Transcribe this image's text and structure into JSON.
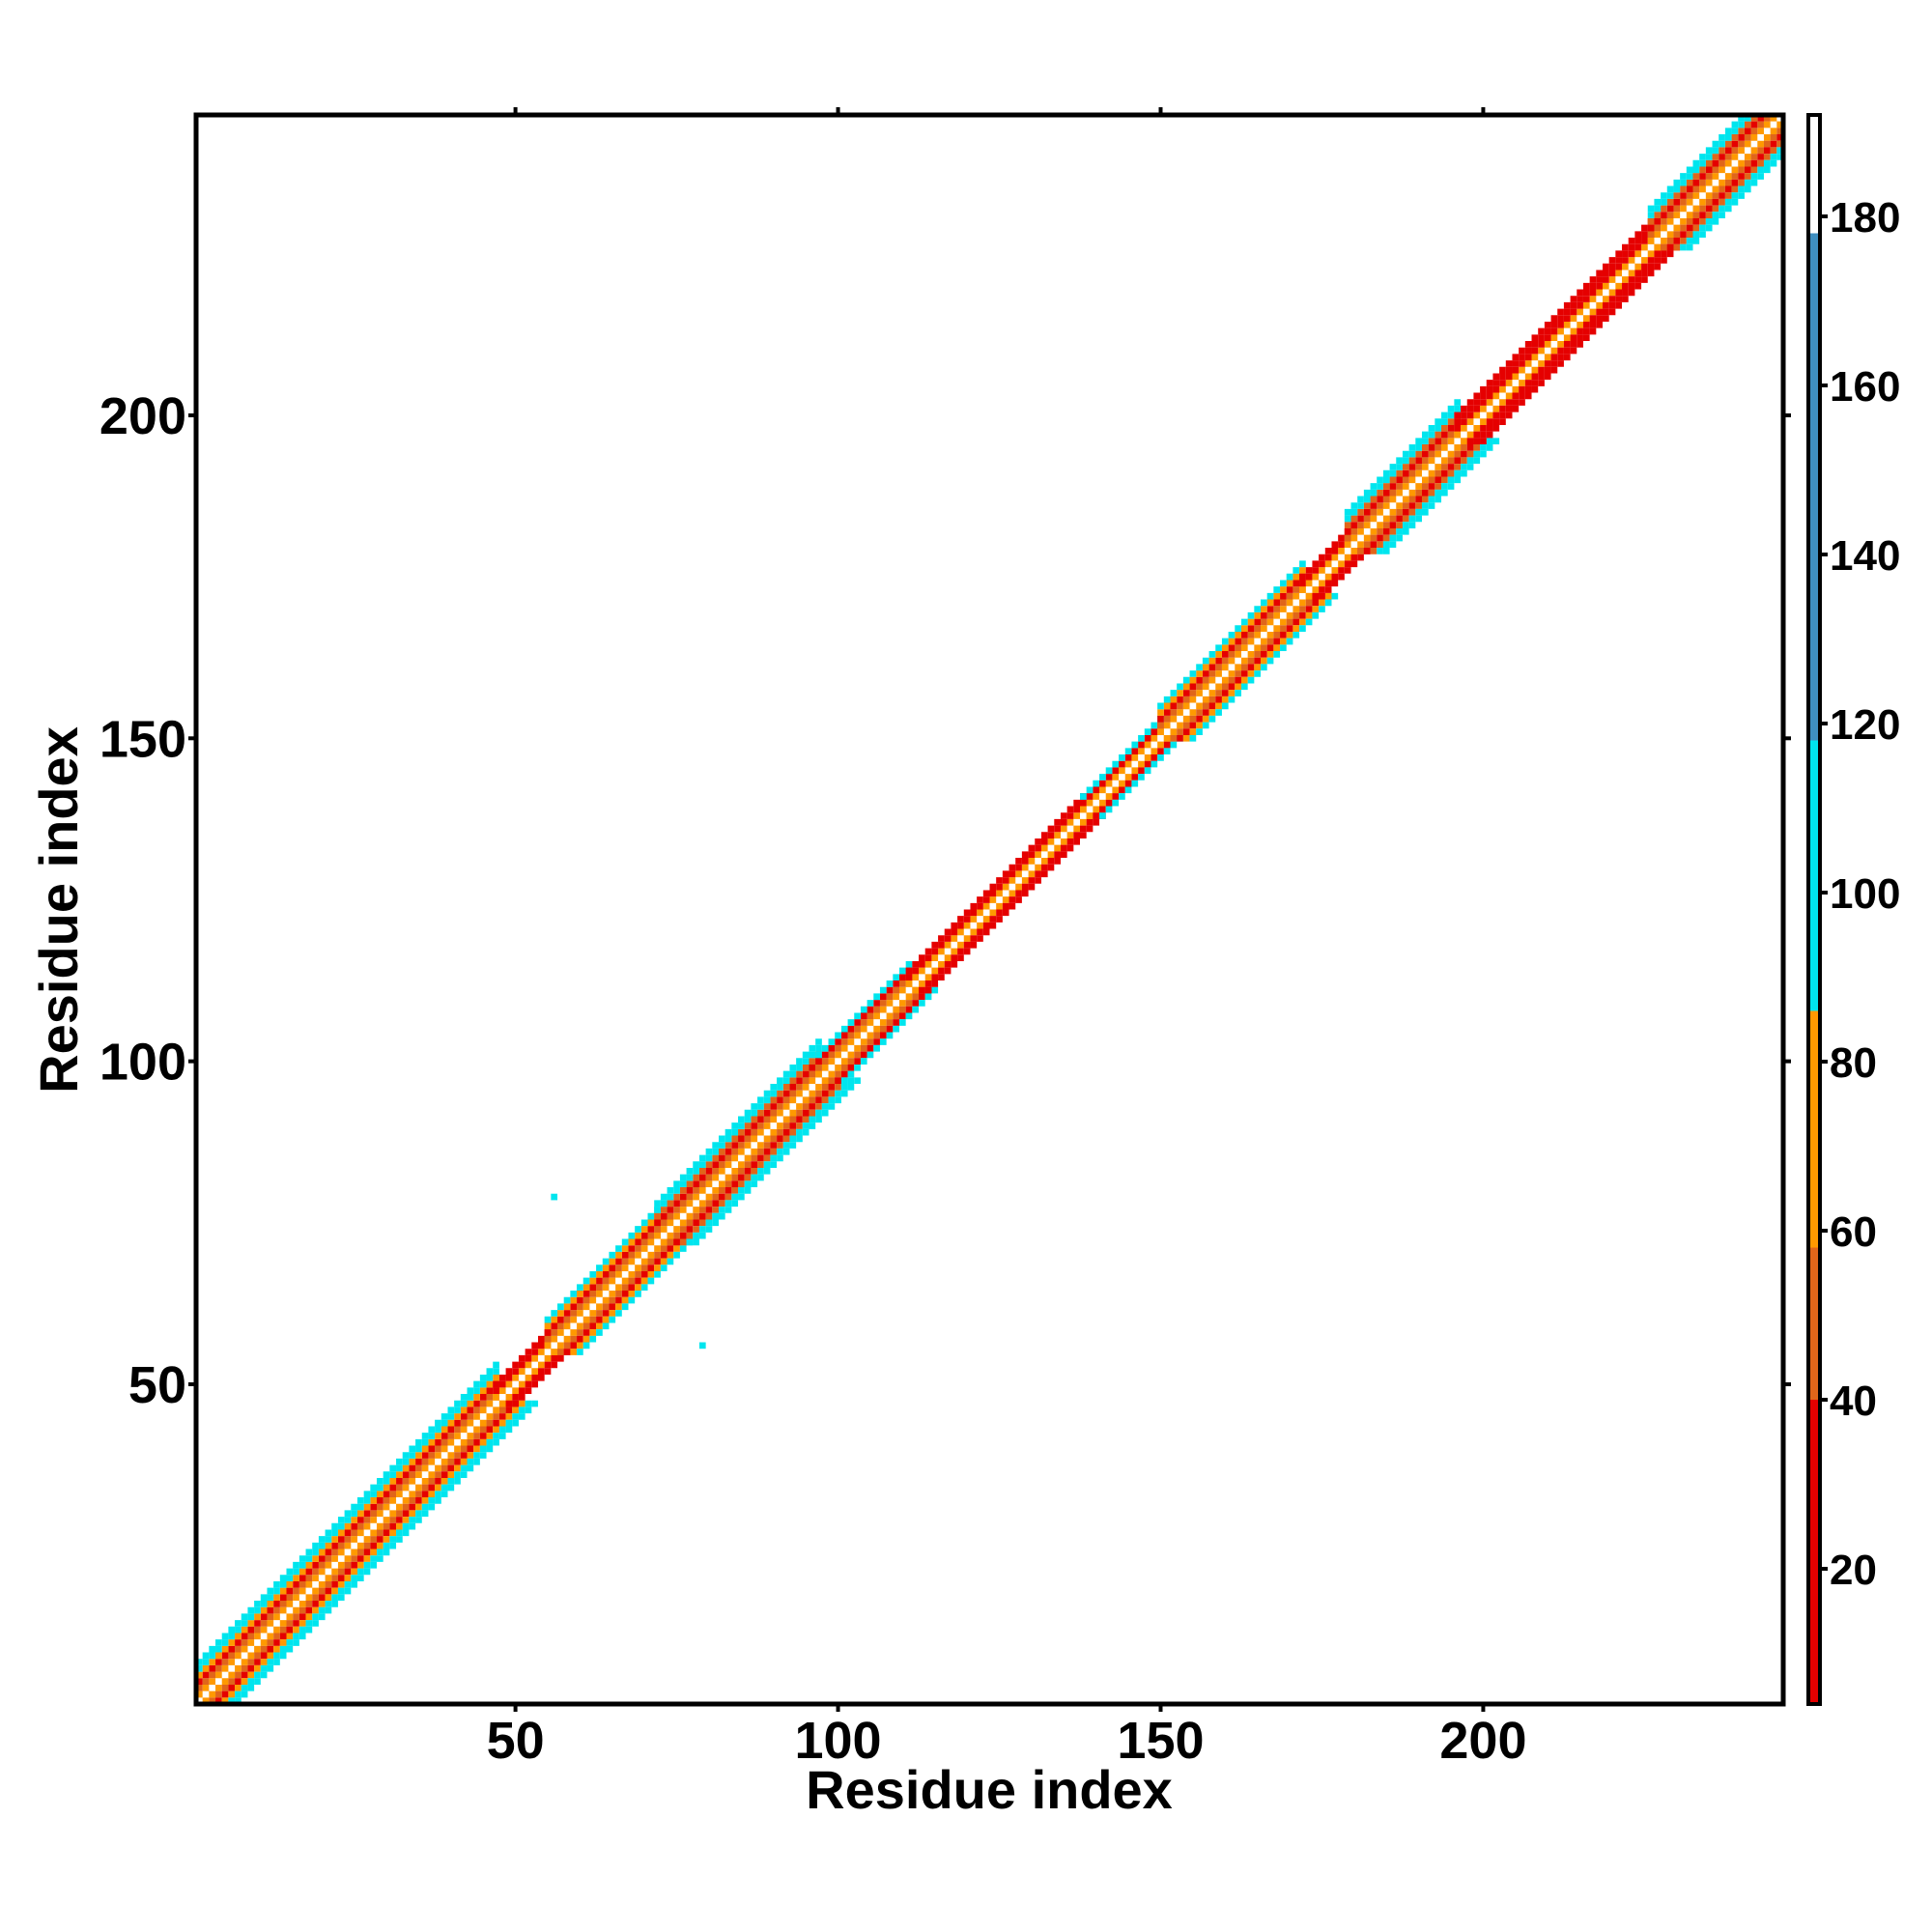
{
  "chart_data": {
    "type": "contact_map",
    "xlabel": "Residue index",
    "ylabel": "Residue index",
    "xlim": [
      0.5,
      246.5
    ],
    "ylim": [
      0.5,
      246.5
    ],
    "xticks": [
      50,
      100,
      150,
      200
    ],
    "yticks": [
      50,
      100,
      150,
      200
    ],
    "offsets": [
      1,
      2,
      3,
      4,
      5,
      6
    ],
    "segments": [
      {
        "start": 1,
        "end": 47,
        "values": [
          70,
          50,
          25,
          65,
          100,
          105
        ]
      },
      {
        "start": 47,
        "end": 55,
        "values": [
          75,
          25,
          30,
          null,
          null,
          null
        ]
      },
      {
        "start": 55,
        "end": 72,
        "values": [
          70,
          50,
          25,
          65,
          100,
          null
        ]
      },
      {
        "start": 72,
        "end": 97,
        "values": [
          75,
          45,
          25,
          55,
          100,
          105
        ]
      },
      {
        "start": 97,
        "end": 111,
        "values": [
          75,
          50,
          25,
          100,
          null,
          null
        ]
      },
      {
        "start": 111,
        "end": 138,
        "values": [
          75,
          25,
          30,
          null,
          null,
          null
        ]
      },
      {
        "start": 138,
        "end": 150,
        "values": [
          70,
          30,
          100,
          null,
          null,
          null
        ]
      },
      {
        "start": 150,
        "end": 172,
        "values": [
          75,
          50,
          25,
          65,
          100,
          null
        ]
      },
      {
        "start": 172,
        "end": 179,
        "values": [
          70,
          25,
          30,
          null,
          null,
          null
        ]
      },
      {
        "start": 179,
        "end": 196,
        "values": [
          75,
          45,
          25,
          55,
          100,
          105
        ]
      },
      {
        "start": 196,
        "end": 226,
        "values": [
          70,
          25,
          30,
          20,
          null,
          null
        ]
      },
      {
        "start": 226,
        "end": 246,
        "values": [
          75,
          45,
          25,
          55,
          100,
          105
        ]
      }
    ],
    "extra_contacts": {
      "x": [
        56,
        79
      ],
      "y": [
        79,
        56
      ],
      "values": [
        110,
        110
      ]
    },
    "colorscale": {
      "bounds": [
        4,
        40,
        58,
        86,
        118,
        178,
        192
      ],
      "colors": [
        "#e50000",
        "#e0661a",
        "#ff9900",
        "#00e5ee",
        "#3f8fc0",
        "#ffffff"
      ]
    },
    "clim": [
      4,
      192
    ],
    "cticks": [
      20,
      40,
      60,
      80,
      100,
      120,
      140,
      160,
      180
    ]
  }
}
